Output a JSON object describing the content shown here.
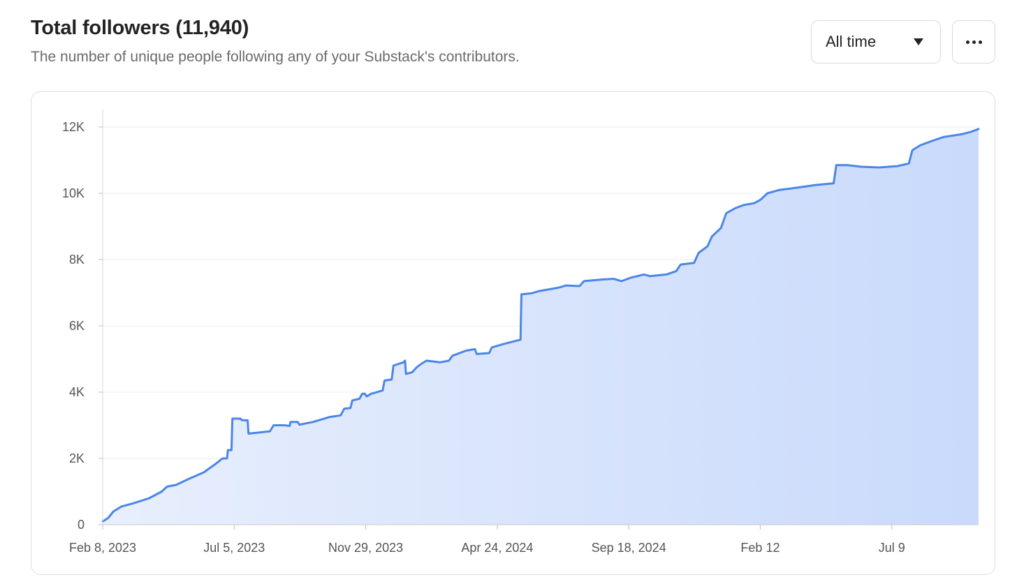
{
  "header": {
    "title": "Total followers (11,940)",
    "subtitle": "The number of unique people following any of your Substack's contributors."
  },
  "controls": {
    "range_label": "All time",
    "more_icon": "more-horizontal-icon",
    "range_icon": "caret-down-icon"
  },
  "chart_data": {
    "type": "area",
    "grid": true,
    "legend": "none",
    "color": "#4a86e8",
    "fill_top": "#c9dafb",
    "fill_bottom": "#e8effd",
    "ylim": [
      0,
      12000
    ],
    "yticks": [
      {
        "value": 0,
        "label": "0"
      },
      {
        "value": 2000,
        "label": "2K"
      },
      {
        "value": 4000,
        "label": "4K"
      },
      {
        "value": 6000,
        "label": "6K"
      },
      {
        "value": 8000,
        "label": "8K"
      },
      {
        "value": 10000,
        "label": "10K"
      },
      {
        "value": 12000,
        "label": "12K"
      }
    ],
    "xticks": [
      {
        "date": "2023-02-08",
        "label": "Feb 8, 2023"
      },
      {
        "date": "2023-07-05",
        "label": "Jul 5, 2023"
      },
      {
        "date": "2023-11-29",
        "label": "Nov 29, 2023"
      },
      {
        "date": "2024-04-24",
        "label": "Apr 24, 2024"
      },
      {
        "date": "2024-09-18",
        "label": "Sep 18, 2024"
      },
      {
        "date": "2025-02-12",
        "label": "Feb 12"
      },
      {
        "date": "2025-07-09",
        "label": "Jul 9"
      }
    ],
    "xlim": [
      "2023-02-08",
      "2025-10-14"
    ],
    "points": [
      [
        "2023-02-08",
        100
      ],
      [
        "2023-02-14",
        200
      ],
      [
        "2023-02-20",
        400
      ],
      [
        "2023-03-01",
        550
      ],
      [
        "2023-03-15",
        650
      ],
      [
        "2023-04-01",
        800
      ],
      [
        "2023-04-15",
        1000
      ],
      [
        "2023-04-21",
        1150
      ],
      [
        "2023-05-01",
        1200
      ],
      [
        "2023-05-15",
        1380
      ],
      [
        "2023-06-01",
        1580
      ],
      [
        "2023-06-15",
        1850
      ],
      [
        "2023-06-22",
        2000
      ],
      [
        "2023-06-27",
        2000
      ],
      [
        "2023-06-28",
        2250
      ],
      [
        "2023-07-02",
        2250
      ],
      [
        "2023-07-03",
        3200
      ],
      [
        "2023-07-12",
        3200
      ],
      [
        "2023-07-14",
        3150
      ],
      [
        "2023-07-20",
        3150
      ],
      [
        "2023-07-21",
        2750
      ],
      [
        "2023-08-01",
        2780
      ],
      [
        "2023-08-14",
        2820
      ],
      [
        "2023-08-18",
        3000
      ],
      [
        "2023-08-30",
        3000
      ],
      [
        "2023-09-05",
        2980
      ],
      [
        "2023-09-06",
        3100
      ],
      [
        "2023-09-14",
        3100
      ],
      [
        "2023-09-16",
        3020
      ],
      [
        "2023-10-01",
        3100
      ],
      [
        "2023-10-20",
        3250
      ],
      [
        "2023-11-01",
        3300
      ],
      [
        "2023-11-05",
        3500
      ],
      [
        "2023-11-12",
        3520
      ],
      [
        "2023-11-14",
        3750
      ],
      [
        "2023-11-22",
        3800
      ],
      [
        "2023-11-25",
        3950
      ],
      [
        "2023-11-28",
        3950
      ],
      [
        "2023-11-30",
        3870
      ],
      [
        "2023-12-05",
        3950
      ],
      [
        "2023-12-18",
        4050
      ],
      [
        "2023-12-20",
        4350
      ],
      [
        "2023-12-28",
        4380
      ],
      [
        "2023-12-30",
        4800
      ],
      [
        "2024-01-10",
        4900
      ],
      [
        "2024-01-12",
        4950
      ],
      [
        "2024-01-13",
        4550
      ],
      [
        "2024-01-20",
        4600
      ],
      [
        "2024-01-25",
        4750
      ],
      [
        "2024-01-30",
        4850
      ],
      [
        "2024-02-05",
        4950
      ],
      [
        "2024-02-20",
        4900
      ],
      [
        "2024-03-01",
        4950
      ],
      [
        "2024-03-05",
        5100
      ],
      [
        "2024-03-15",
        5200
      ],
      [
        "2024-03-20",
        5250
      ],
      [
        "2024-03-30",
        5300
      ],
      [
        "2024-04-01",
        5150
      ],
      [
        "2024-04-15",
        5180
      ],
      [
        "2024-04-18",
        5350
      ],
      [
        "2024-05-01",
        5450
      ],
      [
        "2024-05-15",
        5550
      ],
      [
        "2024-05-20",
        5580
      ],
      [
        "2024-05-21",
        6950
      ],
      [
        "2024-06-01",
        6980
      ],
      [
        "2024-06-10",
        7050
      ],
      [
        "2024-07-01",
        7150
      ],
      [
        "2024-07-10",
        7220
      ],
      [
        "2024-07-25",
        7200
      ],
      [
        "2024-07-30",
        7350
      ],
      [
        "2024-08-20",
        7400
      ],
      [
        "2024-09-01",
        7420
      ],
      [
        "2024-09-10",
        7350
      ],
      [
        "2024-09-20",
        7450
      ],
      [
        "2024-10-05",
        7550
      ],
      [
        "2024-10-12",
        7500
      ],
      [
        "2024-10-30",
        7550
      ],
      [
        "2024-11-10",
        7650
      ],
      [
        "2024-11-15",
        7850
      ],
      [
        "2024-11-30",
        7900
      ],
      [
        "2024-12-05",
        8200
      ],
      [
        "2024-12-15",
        8400
      ],
      [
        "2024-12-20",
        8700
      ],
      [
        "2024-12-30",
        8950
      ],
      [
        "2025-01-05",
        9400
      ],
      [
        "2025-01-15",
        9550
      ],
      [
        "2025-01-25",
        9650
      ],
      [
        "2025-02-05",
        9700
      ],
      [
        "2025-02-12",
        9800
      ],
      [
        "2025-02-20",
        10000
      ],
      [
        "2025-03-05",
        10100
      ],
      [
        "2025-03-20",
        10150
      ],
      [
        "2025-04-15",
        10250
      ],
      [
        "2025-05-05",
        10300
      ],
      [
        "2025-05-08",
        10850
      ],
      [
        "2025-05-20",
        10850
      ],
      [
        "2025-06-05",
        10800
      ],
      [
        "2025-06-25",
        10780
      ],
      [
        "2025-07-15",
        10820
      ],
      [
        "2025-07-28",
        10900
      ],
      [
        "2025-08-01",
        11300
      ],
      [
        "2025-08-10",
        11450
      ],
      [
        "2025-08-25",
        11600
      ],
      [
        "2025-09-05",
        11700
      ],
      [
        "2025-09-25",
        11780
      ],
      [
        "2025-10-05",
        11850
      ],
      [
        "2025-10-14",
        11940
      ]
    ]
  }
}
